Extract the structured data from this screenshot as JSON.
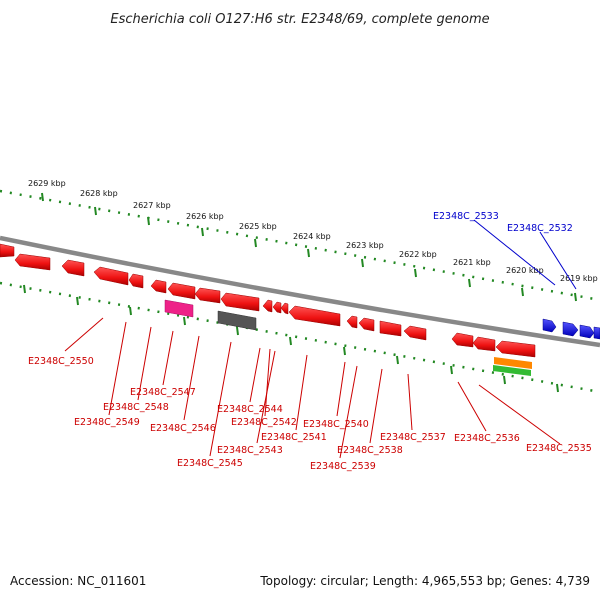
{
  "title": "Escherichia coli O127:H6 str. E2348/69, complete genome",
  "kbp_labels": [
    "2629 kbp",
    "2628 kbp",
    "2627 kbp",
    "2626 kbp",
    "2625 kbp",
    "2624 kbp",
    "2623 kbp",
    "2622 kbp",
    "2621 kbp",
    "2620 kbp",
    "2619 kbp"
  ],
  "gene_labels_blue": [
    "E2348C_2533",
    "E2348C_2532"
  ],
  "gene_labels_red": [
    "E2348C_2550",
    "E2348C_2547",
    "E2348C_2548",
    "E2348C_2549",
    "E2348C_2546",
    "E2348C_2545",
    "E2348C_2544",
    "E2348C_2542",
    "E2348C_2543",
    "E2348C_2541",
    "E2348C_2540",
    "E2348C_2539",
    "E2348C_2538",
    "E2348C_2537",
    "E2348C_2536",
    "E2348C_2535"
  ],
  "footer": {
    "accession": "Accession: NC_011601",
    "topology": "Topology: circular; Length: 4,965,553 bp; Genes: 4,739"
  },
  "colors": {
    "backbone": "#888888",
    "tick": "#228822",
    "reverse_gene": "#ee1111",
    "forward_gene": "#1111ee",
    "label_red": "#cc0000",
    "label_blue": "#0000cc",
    "feature_magenta": "#ee2288",
    "feature_gray": "#555555",
    "feature_orange": "#ff8800",
    "feature_green": "#33bb33"
  }
}
